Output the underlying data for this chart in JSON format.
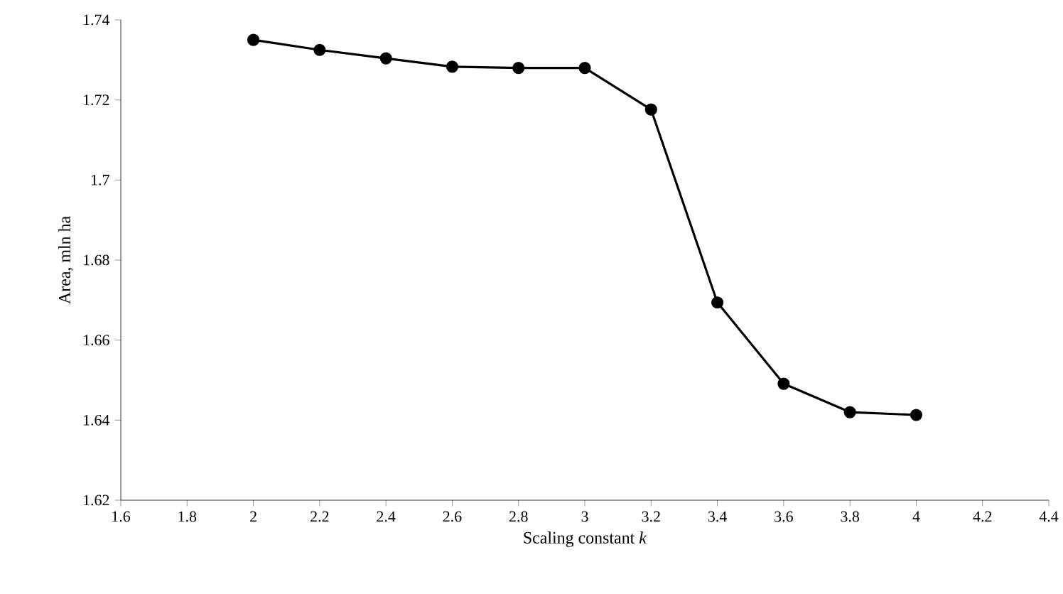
{
  "chart_data": {
    "type": "line",
    "xlabel": "Scaling constant *k*",
    "ylabel": "Area, mln ha",
    "x": [
      2,
      2.2,
      2.4,
      2.6,
      2.8,
      3,
      3.2,
      3.4,
      3.6,
      3.8,
      4
    ],
    "values": [
      1.735,
      1.7325,
      1.7304,
      1.7283,
      1.728,
      1.728,
      1.7176,
      1.6694,
      1.6491,
      1.642,
      1.6413
    ],
    "color": "#000000",
    "marker": "circle",
    "line_style": "solid",
    "xlim": [
      1.6,
      4.4
    ],
    "ylim": [
      1.62,
      1.74
    ],
    "xticks": [
      1.6,
      1.8,
      2,
      2.2,
      2.4,
      2.6,
      2.8,
      3,
      3.2,
      3.4,
      3.6,
      3.8,
      4,
      4.2,
      4.4
    ],
    "yticks": [
      1.62,
      1.64,
      1.66,
      1.68,
      1.7,
      1.72,
      1.74
    ]
  }
}
